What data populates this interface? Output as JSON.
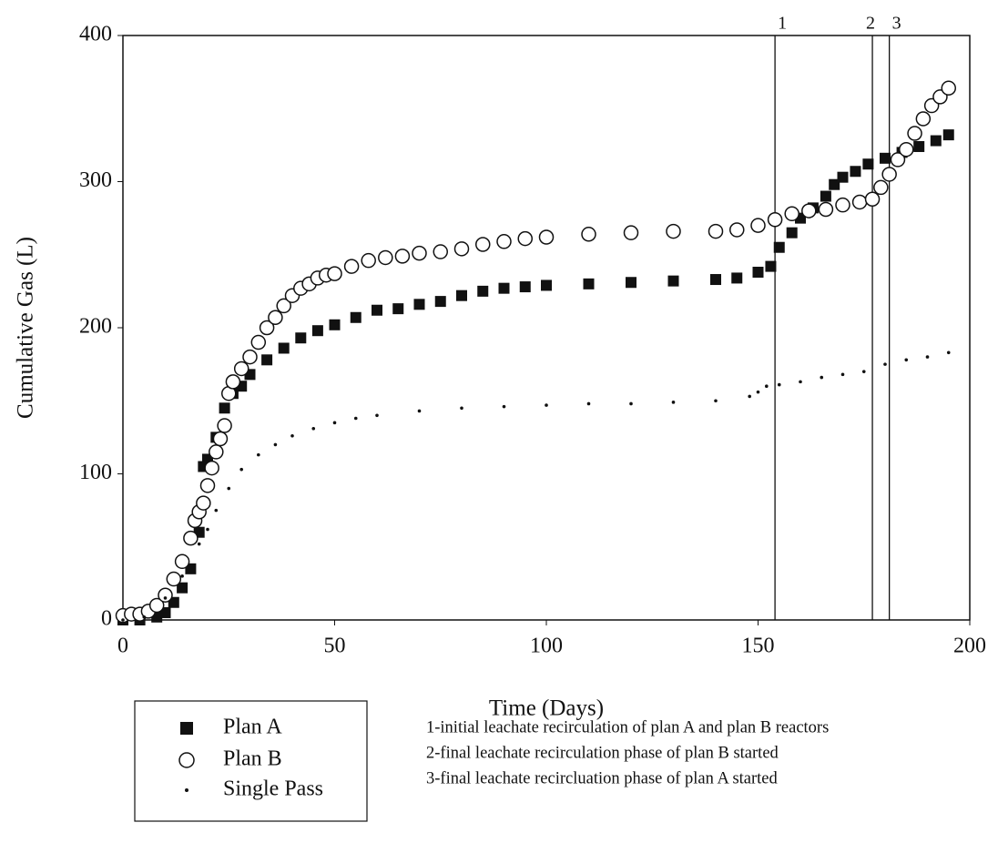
{
  "chart_data": {
    "type": "scatter",
    "xlabel": "Time (Days)",
    "ylabel": "Cumulative Gas (L)",
    "xlim": [
      0,
      200
    ],
    "ylim": [
      0,
      400
    ],
    "xticks": [
      0,
      50,
      100,
      150,
      200
    ],
    "yticks": [
      0,
      100,
      200,
      300,
      400
    ],
    "series": [
      {
        "name": "Plan A",
        "color": "#111111",
        "marker": "square",
        "x": [
          0,
          4,
          8,
          10,
          12,
          14,
          16,
          18,
          19,
          20,
          22,
          24,
          26,
          28,
          30,
          34,
          38,
          42,
          46,
          50,
          55,
          60,
          65,
          70,
          75,
          80,
          85,
          90,
          95,
          100,
          110,
          120,
          130,
          140,
          145,
          150,
          153,
          155,
          158,
          160,
          163,
          166,
          168,
          170,
          173,
          176,
          180,
          184,
          188,
          192,
          195
        ],
        "values": [
          0,
          0,
          2,
          5,
          12,
          22,
          35,
          60,
          105,
          110,
          125,
          145,
          155,
          160,
          168,
          178,
          186,
          193,
          198,
          202,
          207,
          212,
          213,
          216,
          218,
          222,
          225,
          227,
          228,
          229,
          230,
          231,
          232,
          233,
          234,
          238,
          242,
          255,
          265,
          275,
          282,
          290,
          298,
          303,
          307,
          312,
          316,
          320,
          324,
          328,
          332
        ]
      },
      {
        "name": "Plan B",
        "color": "#111111",
        "marker": "circle",
        "x": [
          0,
          2,
          4,
          6,
          8,
          10,
          12,
          14,
          16,
          17,
          18,
          19,
          20,
          21,
          22,
          23,
          24,
          25,
          26,
          28,
          30,
          32,
          34,
          36,
          38,
          40,
          42,
          44,
          46,
          48,
          50,
          54,
          58,
          62,
          66,
          70,
          75,
          80,
          85,
          90,
          95,
          100,
          110,
          120,
          130,
          140,
          145,
          150,
          154,
          158,
          162,
          166,
          170,
          174,
          177,
          179,
          181,
          183,
          185,
          187,
          189,
          191,
          193,
          195
        ],
        "values": [
          3,
          4,
          4,
          6,
          10,
          17,
          28,
          40,
          56,
          68,
          74,
          80,
          92,
          104,
          115,
          124,
          133,
          155,
          163,
          172,
          180,
          190,
          200,
          207,
          215,
          222,
          227,
          230,
          234,
          236,
          237,
          242,
          246,
          248,
          249,
          251,
          252,
          254,
          257,
          259,
          261,
          262,
          264,
          265,
          266,
          266,
          267,
          270,
          274,
          278,
          280,
          281,
          284,
          286,
          288,
          296,
          305,
          315,
          322,
          333,
          343,
          352,
          358,
          364
        ]
      },
      {
        "name": "Single Pass",
        "color": "#111111",
        "marker": "dot",
        "x": [
          0,
          5,
          10,
          14,
          18,
          20,
          22,
          25,
          28,
          32,
          36,
          40,
          45,
          50,
          55,
          60,
          70,
          80,
          90,
          100,
          110,
          120,
          130,
          140,
          148,
          150,
          152,
          155,
          160,
          165,
          170,
          175,
          180,
          185,
          190,
          195
        ],
        "values": [
          0,
          2,
          15,
          30,
          52,
          62,
          75,
          90,
          103,
          113,
          120,
          126,
          131,
          135,
          138,
          140,
          143,
          145,
          146,
          147,
          148,
          148,
          149,
          150,
          153,
          156,
          160,
          161,
          163,
          166,
          168,
          170,
          175,
          178,
          180,
          183
        ]
      }
    ],
    "vlines": [
      {
        "value": 154,
        "label": "1"
      },
      {
        "value": 177,
        "label": "2"
      },
      {
        "value": 181,
        "label": "3"
      }
    ],
    "notes": [
      "1-initial leachate recirculation of plan A and plan B reactors",
      "2-final leachate recirculation phase of plan B started",
      "3-final leachate recircluation phase of plan A started"
    ]
  }
}
